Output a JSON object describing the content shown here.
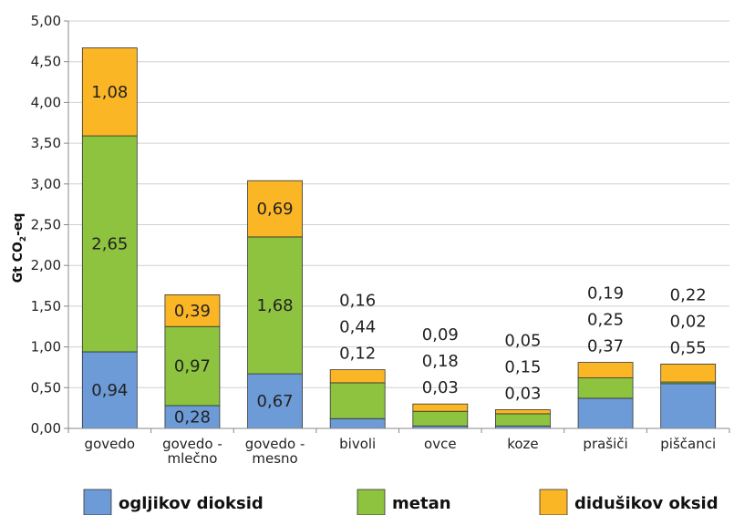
{
  "chart_data": {
    "type": "bar",
    "stacked": true,
    "categories": [
      "govedo",
      "govedo - mlečno",
      "govedo - mesno",
      "bivoli",
      "ovce",
      "koze",
      "prašiči",
      "piščanci"
    ],
    "series": [
      {
        "name": "ogljikov dioksid",
        "color": "#6d9bd7",
        "values": [
          0.94,
          0.28,
          0.67,
          0.12,
          0.03,
          0.03,
          0.37,
          0.55
        ]
      },
      {
        "name": "metan",
        "color": "#8dc33f",
        "values": [
          2.65,
          0.97,
          1.68,
          0.44,
          0.18,
          0.15,
          0.25,
          0.02
        ]
      },
      {
        "name": "didušikov oksid",
        "color": "#fbb626",
        "values": [
          1.08,
          0.39,
          0.69,
          0.16,
          0.09,
          0.05,
          0.19,
          0.22
        ]
      }
    ],
    "labels": {
      "ogljikov dioksid": [
        "0,94",
        "0,28",
        "0,67",
        "0,12",
        "0,03",
        "0,03",
        "0,37",
        "0,55"
      ],
      "metan": [
        "2,65",
        "0,97",
        "1,68",
        "0,44",
        "0,18",
        "0,15",
        "0,25",
        "0,02"
      ],
      "didušikov oksid": [
        "1,08",
        "0,39",
        "0,69",
        "0,16",
        "0,09",
        "0,05",
        "0,19",
        "0,22"
      ]
    },
    "ylabel_main": "Gt CO",
    "ylabel_sub": "2",
    "ylabel_tail": "-eq",
    "ylim": [
      0,
      5
    ],
    "yticks": [
      0,
      0.5,
      1,
      1.5,
      2,
      2.5,
      3,
      3.5,
      4,
      4.5,
      5
    ],
    "ytick_labels": [
      "0,00",
      "0,50",
      "1,00",
      "1,50",
      "2,00",
      "2,50",
      "3,00",
      "3,50",
      "4,00",
      "4,50",
      "5,00"
    ],
    "grid": true,
    "legend_position": "bottom"
  }
}
